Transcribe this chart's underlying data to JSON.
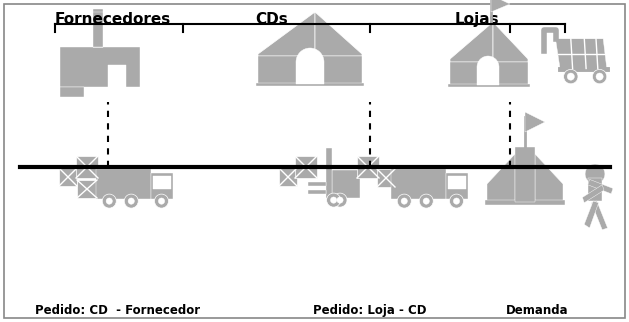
{
  "bg_color": "#ffffff",
  "border_color": "#aaaaaa",
  "icon_color": "#aaaaaa",
  "line_color": "#000000",
  "text_color": "#000000",
  "title_fornecedores": "Fornecedores",
  "title_cds": "CDs",
  "title_lojas": "Lojas",
  "label_pedido_cd": "Pedido: CD  - Fornecedor",
  "label_pedido_loja": "Pedido: Loja - CD",
  "label_demanda": "Demanda",
  "font_size_title": 11,
  "font_size_label": 8.5
}
